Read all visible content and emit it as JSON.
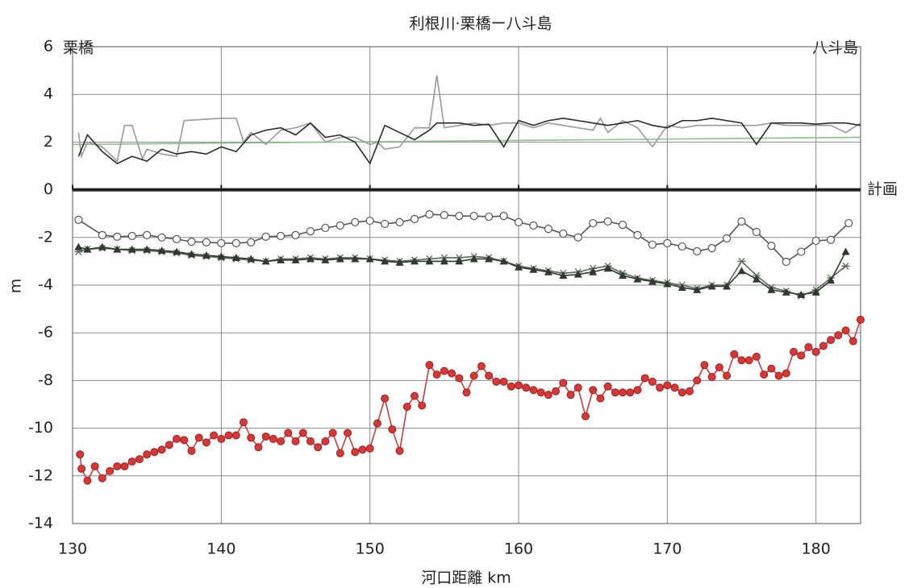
{
  "chart_data": {
    "type": "line",
    "title": "利根川·栗橋ー八斗島",
    "xlabel": "河口距離  km",
    "ylabel": "m",
    "annotations": [
      "栗橋",
      "八斗島"
    ],
    "xlim": [
      130,
      183
    ],
    "ylim": [
      -14,
      6
    ],
    "xticks": [
      130,
      140,
      150,
      160,
      170,
      180
    ],
    "yticks": [
      -14,
      -12,
      -10,
      -8,
      -6,
      -4,
      -2,
      0,
      2,
      4,
      6
    ],
    "grid": true,
    "series": [
      {
        "name": "計画",
        "color": "#1f1f1f",
        "marker": "none",
        "x": [
          130,
          183
        ],
        "values": [
          0,
          0
        ]
      },
      {
        "color": "#8fbf8f",
        "marker": "none",
        "x": [
          130,
          183
        ],
        "values": [
          1.9,
          2.2
        ]
      },
      {
        "color": "#9a9a9a",
        "marker": "none",
        "x": [
          130.4,
          130.6,
          131,
          132,
          133,
          133.5,
          134,
          134.7,
          135,
          136,
          137,
          137.5,
          140,
          141,
          141.5,
          142,
          143,
          144,
          145,
          146,
          147,
          148,
          149,
          150,
          150.5,
          151,
          152,
          153,
          154,
          154.5,
          155,
          156,
          157,
          158,
          159,
          160,
          161,
          162,
          163,
          164,
          165,
          165.5,
          166,
          167,
          168,
          169,
          170,
          171,
          172,
          173,
          174,
          175,
          176,
          177,
          178,
          179,
          180,
          181,
          182,
          183
        ],
        "values": [
          2.4,
          1.4,
          2.0,
          1.8,
          1.2,
          2.7,
          2.7,
          1.3,
          1.7,
          1.5,
          1.4,
          2.9,
          3.0,
          3.0,
          2.0,
          2.4,
          1.9,
          2.5,
          2.6,
          2.8,
          2.0,
          2.2,
          2.2,
          1.9,
          2.0,
          1.7,
          1.8,
          2.6,
          2.6,
          4.8,
          2.6,
          2.7,
          2.8,
          2.7,
          2.8,
          2.8,
          2.6,
          2.8,
          2.7,
          2.6,
          2.5,
          3.0,
          2.4,
          2.9,
          2.6,
          1.8,
          2.7,
          2.6,
          2.7,
          2.7,
          2.7,
          2.7,
          2.7,
          2.8,
          2.7,
          2.7,
          2.7,
          2.7,
          2.4,
          2.8
        ]
      },
      {
        "color": "#2a2a2a",
        "marker": "none",
        "x": [
          130.4,
          131,
          132,
          133,
          134,
          135,
          136,
          137,
          138,
          139,
          140,
          141,
          142,
          143,
          144,
          145,
          146,
          147,
          148,
          149,
          150,
          151,
          152,
          153,
          154,
          154.5,
          155,
          156,
          157,
          158,
          159,
          160,
          161,
          162,
          163,
          164,
          165,
          166,
          167,
          168,
          169,
          170,
          171,
          172,
          173,
          174,
          175,
          176,
          177,
          178,
          179,
          180,
          181,
          182,
          183
        ],
        "values": [
          1.4,
          2.3,
          1.6,
          1.1,
          1.4,
          1.2,
          1.7,
          1.5,
          1.6,
          1.5,
          1.8,
          1.6,
          2.3,
          2.5,
          2.6,
          2.3,
          2.8,
          2.2,
          2.3,
          2.0,
          1.1,
          2.7,
          2.4,
          2.1,
          2.5,
          2.8,
          2.8,
          2.8,
          2.7,
          2.75,
          1.8,
          2.9,
          2.7,
          2.9,
          3.0,
          2.9,
          2.8,
          2.7,
          2.8,
          2.9,
          2.7,
          2.6,
          2.9,
          2.9,
          3.0,
          2.9,
          2.8,
          1.9,
          2.8,
          2.8,
          2.8,
          2.75,
          2.8,
          2.8,
          2.7
        ]
      },
      {
        "color": "#555555",
        "marker": "circle-open",
        "x": [
          130.4,
          132,
          133,
          134,
          135,
          136,
          137,
          138,
          139,
          140,
          141,
          142,
          143,
          144,
          145,
          146,
          147,
          148,
          149,
          150,
          151,
          152,
          153,
          154,
          155,
          156,
          157,
          158,
          159,
          160,
          161,
          162,
          163,
          164,
          165,
          166,
          167,
          168,
          169,
          170,
          171,
          172,
          173,
          174,
          175,
          176,
          177,
          178,
          179,
          180,
          181,
          182.2
        ],
        "values": [
          -1.26,
          -1.9,
          -1.97,
          -1.94,
          -1.9,
          -2.0,
          -2.07,
          -2.18,
          -2.2,
          -2.24,
          -2.24,
          -2.2,
          -1.97,
          -1.94,
          -1.9,
          -1.74,
          -1.6,
          -1.5,
          -1.36,
          -1.3,
          -1.43,
          -1.36,
          -1.23,
          -1.03,
          -1.06,
          -1.1,
          -1.1,
          -1.13,
          -1.1,
          -1.36,
          -1.5,
          -1.64,
          -1.84,
          -2.0,
          -1.4,
          -1.33,
          -1.47,
          -1.9,
          -2.3,
          -2.24,
          -2.38,
          -2.58,
          -2.45,
          -2.04,
          -1.33,
          -1.77,
          -2.35,
          -3.02,
          -2.6,
          -2.14,
          -2.1,
          -1.4
        ]
      },
      {
        "color": "#5a6a5a",
        "marker": "star",
        "x": [
          130.4,
          131,
          132,
          133,
          134,
          135,
          136,
          137,
          138,
          139,
          140,
          141,
          142,
          143,
          144,
          145,
          146,
          147,
          148,
          149,
          150,
          151,
          152,
          153,
          154,
          155,
          156,
          157,
          158,
          159,
          160,
          161,
          162,
          163,
          164,
          165,
          166,
          167,
          168,
          169,
          170,
          171,
          172,
          173,
          174,
          175,
          176,
          177,
          178,
          179,
          180,
          181,
          182
        ],
        "values": [
          -2.6,
          -2.5,
          -2.45,
          -2.5,
          -2.55,
          -2.55,
          -2.6,
          -2.65,
          -2.75,
          -2.8,
          -2.85,
          -2.9,
          -2.95,
          -3.0,
          -2.9,
          -2.9,
          -2.85,
          -2.9,
          -2.85,
          -2.85,
          -2.9,
          -2.95,
          -3.0,
          -2.95,
          -2.9,
          -2.85,
          -2.85,
          -2.8,
          -2.85,
          -3.0,
          -3.2,
          -3.3,
          -3.4,
          -3.5,
          -3.45,
          -3.3,
          -3.2,
          -3.5,
          -3.7,
          -3.8,
          -3.9,
          -4.0,
          -4.15,
          -4.0,
          -4.0,
          -3.0,
          -3.6,
          -4.1,
          -4.25,
          -4.45,
          -4.2,
          -3.7,
          -3.2
        ]
      },
      {
        "color": "#2f3a2f",
        "marker": "triangle",
        "x": [
          130.4,
          131,
          132,
          133,
          134,
          135,
          136,
          137,
          138,
          139,
          140,
          141,
          142,
          143,
          144,
          145,
          146,
          147,
          148,
          149,
          150,
          151,
          152,
          153,
          154,
          155,
          156,
          157,
          158,
          159,
          160,
          161,
          162,
          163,
          164,
          165,
          166,
          167,
          168,
          169,
          170,
          171,
          172,
          173,
          174,
          175,
          176,
          177,
          178,
          179,
          180,
          181,
          182
        ],
        "values": [
          -2.4,
          -2.5,
          -2.4,
          -2.5,
          -2.5,
          -2.5,
          -2.55,
          -2.6,
          -2.7,
          -2.75,
          -2.8,
          -2.85,
          -2.9,
          -3.0,
          -2.95,
          -2.95,
          -2.9,
          -2.95,
          -2.9,
          -2.9,
          -2.9,
          -3.0,
          -3.05,
          -3.0,
          -3.0,
          -3.0,
          -3.0,
          -2.9,
          -2.9,
          -3.0,
          -3.25,
          -3.35,
          -3.45,
          -3.6,
          -3.55,
          -3.45,
          -3.3,
          -3.6,
          -3.75,
          -3.85,
          -3.95,
          -4.1,
          -4.2,
          -4.05,
          -4.05,
          -3.4,
          -3.75,
          -4.2,
          -4.3,
          -4.4,
          -4.3,
          -3.8,
          -2.6
        ]
      },
      {
        "color": "#d23a3a",
        "marker": "circle-filled",
        "x": [
          130.5,
          130.6,
          131,
          131.5,
          132,
          132.5,
          133,
          133.5,
          134,
          134.5,
          135,
          135.5,
          136,
          136.5,
          137,
          137.5,
          138,
          138.5,
          139,
          139.5,
          140,
          140.5,
          141,
          141.5,
          142,
          142.5,
          143,
          143.5,
          144,
          144.5,
          145,
          145.5,
          146,
          146.5,
          147,
          147.5,
          148,
          148.5,
          149,
          149.5,
          150,
          150.5,
          151,
          151.5,
          152,
          152.5,
          153,
          153.5,
          154,
          154.5,
          155,
          155.5,
          156,
          156.5,
          157,
          157.5,
          158,
          158.5,
          159,
          159.5,
          160,
          160.5,
          161,
          161.5,
          162,
          162.5,
          163,
          163.5,
          164,
          164.5,
          165,
          165.5,
          166,
          166.5,
          167,
          167.5,
          168,
          168.5,
          169,
          169.5,
          170,
          170.5,
          171,
          171.5,
          172,
          172.5,
          173,
          173.5,
          174,
          174.5,
          175,
          175.5,
          176,
          176.5,
          177,
          177.5,
          178,
          178.5,
          179,
          179.5,
          180,
          180.5,
          181,
          181.5,
          182,
          182.5,
          183
        ],
        "values": [
          -11.1,
          -11.7,
          -12.2,
          -11.6,
          -12.1,
          -11.8,
          -11.6,
          -11.6,
          -11.4,
          -11.3,
          -11.1,
          -11.0,
          -10.9,
          -10.7,
          -10.45,
          -10.5,
          -10.95,
          -10.4,
          -10.6,
          -10.3,
          -10.45,
          -10.3,
          -10.3,
          -9.75,
          -10.4,
          -10.8,
          -10.35,
          -10.45,
          -10.55,
          -10.2,
          -10.55,
          -10.2,
          -10.55,
          -10.8,
          -10.55,
          -10.2,
          -11.05,
          -10.2,
          -11.0,
          -10.9,
          -10.85,
          -9.8,
          -8.75,
          -10.05,
          -10.95,
          -9.1,
          -8.65,
          -9.05,
          -7.35,
          -7.75,
          -7.6,
          -7.7,
          -7.9,
          -8.5,
          -7.8,
          -7.4,
          -7.8,
          -8.05,
          -8.05,
          -8.25,
          -8.2,
          -8.3,
          -8.4,
          -8.5,
          -8.6,
          -8.45,
          -8.1,
          -8.6,
          -8.3,
          -9.5,
          -8.4,
          -8.75,
          -8.25,
          -8.5,
          -8.5,
          -8.5,
          -8.4,
          -7.9,
          -8.05,
          -8.3,
          -8.2,
          -8.3,
          -8.5,
          -8.45,
          -8.0,
          -7.35,
          -7.85,
          -7.45,
          -7.8,
          -6.9,
          -7.15,
          -7.15,
          -7.0,
          -7.75,
          -7.5,
          -7.8,
          -7.7,
          -6.8,
          -6.95,
          -6.6,
          -6.8,
          -6.55,
          -6.3,
          -6.1,
          -5.9,
          -6.35,
          -5.45
        ]
      }
    ]
  }
}
